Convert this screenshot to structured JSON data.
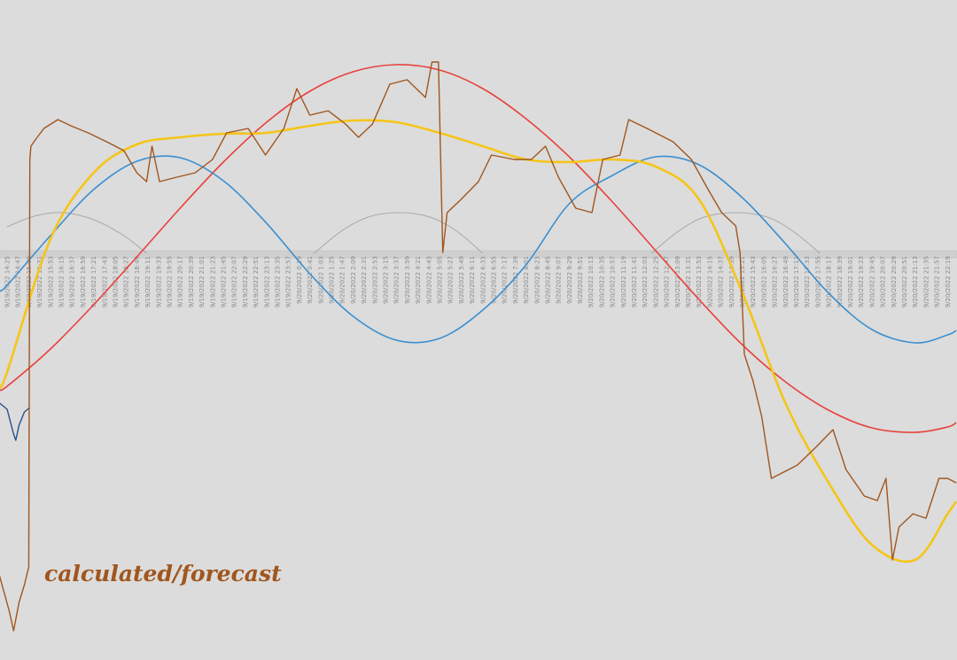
{
  "chart_data": {
    "type": "line",
    "annotation": "calculated/forecast",
    "xlim": [
      -0.66,
      87.87
    ],
    "ylim": [
      -459,
      286
    ],
    "categories": [
      "9/19/2022 14:25",
      "9/19/2022 14:47",
      "9/19/2022 15:09",
      "9/19/2022 15:31",
      "9/19/2022 15:53",
      "9/19/2022 16:15",
      "9/19/2022 16:37",
      "9/19/2022 16:59",
      "9/19/2022 17:21",
      "9/19/2022 17:43",
      "9/19/2022 18:05",
      "9/19/2022 18:27",
      "9/19/2022 18:49",
      "9/19/2022 19:11",
      "9/19/2022 19:33",
      "9/19/2022 19:55",
      "9/19/2022 20:17",
      "9/19/2022 20:39",
      "9/19/2022 21:01",
      "9/19/2022 21:23",
      "9/19/2022 21:45",
      "9/19/2022 22:07",
      "9/19/2022 22:29",
      "9/19/2022 22:51",
      "9/19/2022 23:13",
      "9/19/2022 23:35",
      "9/19/2022 23:57",
      "9/20/2022 0:19",
      "9/20/2022 0:41",
      "9/20/2022 1:03",
      "9/20/2022 1:25",
      "9/20/2022 1:47",
      "9/20/2022 2:09",
      "9/20/2022 2:31",
      "9/20/2022 2:53",
      "9/20/2022 3:15",
      "9/20/2022 3:37",
      "9/20/2022 3:59",
      "9/20/2022 4:21",
      "9/20/2022 4:43",
      "9/20/2022 5:05",
      "9/20/2022 5:27",
      "9/20/2022 5:49",
      "9/20/2022 6:11",
      "9/20/2022 6:33",
      "9/20/2022 6:55",
      "9/20/2022 7:17",
      "9/20/2022 7:39",
      "9/20/2022 8:01",
      "9/20/2022 8:23",
      "9/20/2022 8:45",
      "9/20/2022 9:07",
      "9/20/2022 9:29",
      "9/20/2022 9:51",
      "9/20/2022 10:13",
      "9/20/2022 10:35",
      "9/20/2022 10:57",
      "9/20/2022 11:19",
      "9/20/2022 11:41",
      "9/20/2022 12:03",
      "9/20/2022 12:25",
      "9/20/2022 12:47",
      "9/20/2022 13:09",
      "9/20/2022 13:31",
      "9/20/2022 13:53",
      "9/20/2022 14:15",
      "9/20/2022 14:37",
      "9/20/2022 14:59",
      "9/20/2022 15:21",
      "9/20/2022 15:43",
      "9/20/2022 16:05",
      "9/20/2022 16:27",
      "9/20/2022 16:49",
      "9/20/2022 17:11",
      "9/20/2022 17:33",
      "9/20/2022 17:55",
      "9/20/2022 18:17",
      "9/20/2022 18:39",
      "9/20/2022 19:01",
      "9/20/2022 19:23",
      "9/20/2022 19:45",
      "9/20/2022 20:07",
      "9/20/2022 20:29",
      "9/20/2022 20:51",
      "9/20/2022 21:13",
      "9/20/2022 21:35",
      "9/20/2022 21:57",
      "9/20/2022 22:19"
    ],
    "series": [
      {
        "color": "#a8a8a8",
        "width": 1,
        "smooth": true,
        "x": [
          0,
          2.5,
          5.1,
          8.0,
          10.8,
          12.9,
          null,
          28.4,
          30.9,
          33.4,
          36.2,
          39.1,
          41.6,
          44.0,
          null,
          59.6,
          62.1,
          64.5,
          67.4,
          70.3,
          72.7,
          75.2
        ],
        "values": [
          30,
          42,
          46,
          38,
          20,
          0,
          null,
          0,
          25,
          41,
          46,
          41,
          25,
          0,
          null,
          0,
          25,
          41,
          46,
          41,
          25,
          0
        ]
      },
      {
        "color": "#e8413c",
        "width": 1.6,
        "smooth": true,
        "x": [
          -0.7,
          0,
          4,
          8,
          12,
          16,
          20,
          24,
          28,
          32,
          36,
          40,
          44,
          48,
          52,
          56,
          60,
          64,
          68,
          72,
          76,
          80,
          84,
          87,
          87.8
        ],
        "values": [
          -154,
          -150,
          -108,
          -58,
          -4,
          51,
          103,
          148,
          183,
          205,
          213,
          207,
          186,
          152,
          109,
          58,
          3,
          -52,
          -103,
          -145,
          -177,
          -197,
          -202,
          -196,
          -191
        ]
      },
      {
        "color": "#3a8fd0",
        "width": 1.6,
        "smooth": true,
        "x": [
          -0.7,
          0,
          4,
          8,
          12,
          16,
          20,
          24,
          28,
          32,
          36,
          40,
          44,
          48,
          52,
          56,
          60,
          64,
          68,
          72,
          76,
          80,
          84,
          87,
          87.8
        ],
        "values": [
          -42,
          -36,
          20,
          72,
          104,
          108,
          82,
          34,
          -23,
          -71,
          -98,
          -96,
          -64,
          -13,
          56,
          88,
          109,
          100,
          63,
          11,
          -45,
          -86,
          -101,
          -92,
          -87
        ]
      },
      {
        "color": "#f5c518",
        "width": 2.6,
        "smooth": true,
        "x": [
          -0.7,
          0,
          4,
          8,
          12,
          16,
          20,
          24,
          28,
          32,
          36,
          40,
          44,
          48,
          52,
          56,
          60,
          64,
          68,
          72,
          76,
          80,
          84,
          87,
          87.8
        ],
        "values": [
          -150,
          -134,
          16,
          91,
          123,
          131,
          135,
          136,
          144,
          150,
          148,
          136,
          121,
          106,
          103,
          106,
          98,
          61,
          -44,
          -169,
          -259,
          -329,
          -346,
          -294,
          -280
        ]
      },
      {
        "color": "#2a4f8a",
        "width": 1.4,
        "smooth": false,
        "x": [
          -0.7,
          0,
          0.6,
          0.8,
          1.1,
          1.6,
          2.1
        ],
        "values": [
          -169,
          -176,
          -204,
          -211,
          -194,
          -179,
          -174
        ]
      },
      {
        "color": "#a0561e",
        "width": 1.4,
        "smooth": false,
        "x": [
          -0.7,
          0.2,
          0.6,
          1.1,
          1.6,
          2.0,
          2.1,
          2.2,
          2.6,
          3.4,
          4.7,
          5.9,
          7.5,
          9.2,
          10.8,
          12.0,
          12.9,
          13.4,
          14.1,
          15.7,
          17.4,
          19.0,
          20.3,
          22.3,
          23.9,
          25.6,
          26.8,
          28.0,
          29.7,
          31.3,
          32.5,
          33.8,
          35.4,
          37.0,
          38.7,
          39.3,
          39.9,
          40.3,
          40.7,
          42.0,
          43.6,
          44.8,
          46.9,
          48.5,
          49.8,
          51.0,
          52.6,
          54.1,
          55.1,
          56.7,
          57.5,
          59.2,
          61.6,
          63.3,
          64.9,
          66.1,
          67.4,
          67.8,
          68.2,
          69.0,
          69.8,
          70.7,
          71.5,
          73.1,
          74.8,
          76.4,
          77.6,
          79.3,
          80.5,
          81.3,
          81.9,
          82.5,
          83.8,
          85.0,
          86.2,
          87.0,
          87.8
        ],
        "values": [
          -364,
          -404,
          -426,
          -394,
          -374,
          -354,
          106,
          121,
          128,
          141,
          151,
          144,
          136,
          126,
          116,
          91,
          81,
          121,
          81,
          86,
          91,
          106,
          136,
          141,
          111,
          141,
          186,
          156,
          161,
          146,
          131,
          146,
          191,
          196,
          176,
          216,
          216,
          1,
          46,
          61,
          81,
          111,
          106,
          106,
          121,
          86,
          51,
          46,
          106,
          111,
          151,
          141,
          126,
          106,
          71,
          46,
          31,
          1,
          -114,
          -144,
          -184,
          -254,
          -249,
          -239,
          -219,
          -199,
          -244,
          -274,
          -279,
          -254,
          -346,
          -309,
          -294,
          -299,
          -254,
          -254,
          -259
        ]
      }
    ]
  }
}
